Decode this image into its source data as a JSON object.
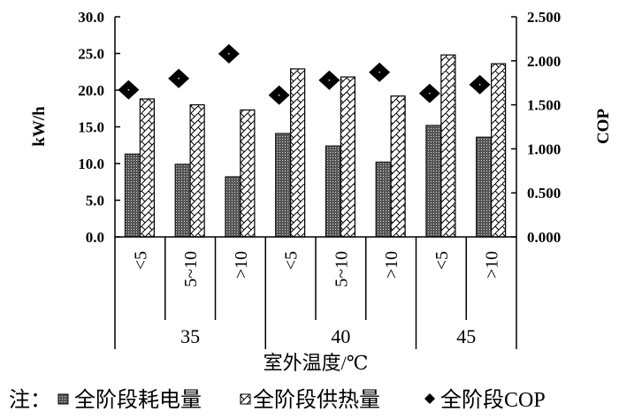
{
  "chart_data": {
    "type": "bar",
    "xlabel": "室外温度/℃",
    "ylabel": "kW/h",
    "y2label": "COP",
    "ylim": [
      0,
      30
    ],
    "y2lim": [
      0,
      2.5
    ],
    "yticks": [
      "0.0",
      "5.0",
      "10.0",
      "15.0",
      "20.0",
      "25.0",
      "30.0"
    ],
    "y2ticks": [
      "0.000",
      "0.500",
      "1.000",
      "1.500",
      "2.000",
      "2.500"
    ],
    "categories": [
      "<5",
      "5~10",
      ">10",
      "<5",
      "5~10",
      ">10",
      "<5",
      ">10"
    ],
    "groups": [
      {
        "label": "35",
        "span": 3
      },
      {
        "label": "40",
        "span": 3
      },
      {
        "label": "45",
        "span": 2
      }
    ],
    "series": [
      {
        "name": "全阶段耗电量",
        "type": "bar",
        "axis": "left",
        "pattern": "dense-dots",
        "values": [
          11.3,
          9.9,
          8.2,
          14.1,
          12.4,
          10.2,
          15.2,
          13.6
        ]
      },
      {
        "name": "全阶段供热量",
        "type": "bar",
        "axis": "left",
        "pattern": "zigzag-hatch",
        "values": [
          18.8,
          18.0,
          17.3,
          22.9,
          21.8,
          19.2,
          24.8,
          23.6
        ]
      },
      {
        "name": "全阶段COP",
        "type": "scatter",
        "axis": "right",
        "marker": "diamond",
        "values": [
          1.67,
          1.8,
          2.08,
          1.61,
          1.78,
          1.87,
          1.63,
          1.73
        ]
      }
    ],
    "legend_prefix": "注：",
    "legend_placement": "bottom",
    "grid": false
  }
}
